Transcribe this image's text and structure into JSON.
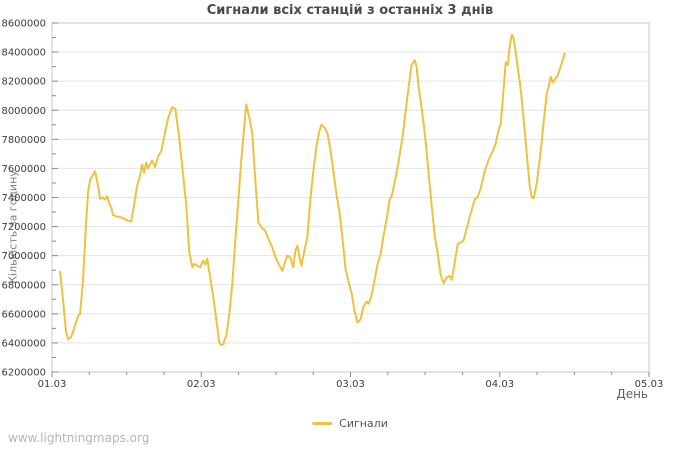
{
  "page": {
    "watermark": "www.lightningmaps.org"
  },
  "colors": {
    "series_yellow": "#EDC240",
    "grid_line": "#e4e4e4",
    "plot_border": "#c9c9c9",
    "tick_mark": "#8a8a8a",
    "tick_label": "#3c3c3c",
    "background": "#ffffff"
  },
  "chart_data": {
    "type": "line",
    "title": "Сигнали всіх станцій з останніх 3 днів",
    "xlabel": "День",
    "ylabel": "Кількість за годину",
    "x_tick_labels": [
      "01.03",
      "02.03",
      "03.03",
      "04.03",
      "05.03"
    ],
    "x_range_days": [
      0,
      4
    ],
    "x_minor_step_days": 0.25,
    "ylim": [
      6200000,
      8600000
    ],
    "y_major_step": 200000,
    "y_minor_step": 100000,
    "grid": "horizontal-only",
    "legend": {
      "position": "bottom-center",
      "entries": [
        {
          "label": "Сигнали",
          "color": "#EDC240"
        }
      ]
    },
    "series": [
      {
        "name": "Сигнали",
        "color": "#EDC240",
        "points_days_value": [
          [
            0.054,
            6890000
          ],
          [
            0.074,
            6700000
          ],
          [
            0.094,
            6480000
          ],
          [
            0.107,
            6425000
          ],
          [
            0.128,
            6440000
          ],
          [
            0.148,
            6500000
          ],
          [
            0.174,
            6585000
          ],
          [
            0.188,
            6600000
          ],
          [
            0.208,
            6830000
          ],
          [
            0.228,
            7220000
          ],
          [
            0.242,
            7440000
          ],
          [
            0.255,
            7520000
          ],
          [
            0.289,
            7580000
          ],
          [
            0.309,
            7480000
          ],
          [
            0.322,
            7390000
          ],
          [
            0.342,
            7400000
          ],
          [
            0.356,
            7385000
          ],
          [
            0.369,
            7410000
          ],
          [
            0.383,
            7360000
          ],
          [
            0.396,
            7335000
          ],
          [
            0.409,
            7280000
          ],
          [
            0.43,
            7270000
          ],
          [
            0.456,
            7265000
          ],
          [
            0.483,
            7255000
          ],
          [
            0.51,
            7240000
          ],
          [
            0.53,
            7235000
          ],
          [
            0.55,
            7350000
          ],
          [
            0.57,
            7480000
          ],
          [
            0.591,
            7555000
          ],
          [
            0.604,
            7625000
          ],
          [
            0.617,
            7570000
          ],
          [
            0.631,
            7640000
          ],
          [
            0.644,
            7600000
          ],
          [
            0.671,
            7655000
          ],
          [
            0.691,
            7610000
          ],
          [
            0.711,
            7680000
          ],
          [
            0.732,
            7720000
          ],
          [
            0.758,
            7850000
          ],
          [
            0.779,
            7950000
          ],
          [
            0.805,
            8020000
          ],
          [
            0.826,
            8010000
          ],
          [
            0.852,
            7810000
          ],
          [
            0.879,
            7550000
          ],
          [
            0.899,
            7350000
          ],
          [
            0.919,
            7030000
          ],
          [
            0.94,
            6920000
          ],
          [
            0.953,
            6945000
          ],
          [
            0.973,
            6930000
          ],
          [
            0.993,
            6920000
          ],
          [
            1.013,
            6965000
          ],
          [
            1.027,
            6940000
          ],
          [
            1.04,
            6980000
          ],
          [
            1.06,
            6850000
          ],
          [
            1.081,
            6715000
          ],
          [
            1.101,
            6560000
          ],
          [
            1.121,
            6400000
          ],
          [
            1.134,
            6385000
          ],
          [
            1.148,
            6390000
          ],
          [
            1.154,
            6415000
          ],
          [
            1.168,
            6450000
          ],
          [
            1.188,
            6600000
          ],
          [
            1.208,
            6810000
          ],
          [
            1.228,
            7100000
          ],
          [
            1.248,
            7380000
          ],
          [
            1.268,
            7650000
          ],
          [
            1.289,
            7900000
          ],
          [
            1.302,
            8040000
          ],
          [
            1.322,
            7950000
          ],
          [
            1.342,
            7840000
          ],
          [
            1.356,
            7610000
          ],
          [
            1.369,
            7425000
          ],
          [
            1.383,
            7230000
          ],
          [
            1.403,
            7195000
          ],
          [
            1.43,
            7170000
          ],
          [
            1.45,
            7115000
          ],
          [
            1.477,
            7055000
          ],
          [
            1.497,
            6990000
          ],
          [
            1.517,
            6945000
          ],
          [
            1.544,
            6895000
          ],
          [
            1.564,
            6965000
          ],
          [
            1.577,
            7000000
          ],
          [
            1.597,
            6985000
          ],
          [
            1.617,
            6920000
          ],
          [
            1.631,
            7035000
          ],
          [
            1.644,
            7070000
          ],
          [
            1.658,
            6990000
          ],
          [
            1.671,
            6930000
          ],
          [
            1.691,
            7035000
          ],
          [
            1.711,
            7130000
          ],
          [
            1.732,
            7400000
          ],
          [
            1.752,
            7590000
          ],
          [
            1.772,
            7755000
          ],
          [
            1.792,
            7860000
          ],
          [
            1.805,
            7900000
          ],
          [
            1.826,
            7880000
          ],
          [
            1.846,
            7840000
          ],
          [
            1.866,
            7725000
          ],
          [
            1.886,
            7575000
          ],
          [
            1.906,
            7420000
          ],
          [
            1.926,
            7300000
          ],
          [
            1.946,
            7125000
          ],
          [
            1.966,
            6915000
          ],
          [
            1.987,
            6820000
          ],
          [
            2.007,
            6745000
          ],
          [
            2.027,
            6620000
          ],
          [
            2.047,
            6540000
          ],
          [
            2.067,
            6560000
          ],
          [
            2.087,
            6650000
          ],
          [
            2.107,
            6685000
          ],
          [
            2.121,
            6670000
          ],
          [
            2.141,
            6725000
          ],
          [
            2.161,
            6830000
          ],
          [
            2.181,
            6940000
          ],
          [
            2.201,
            7010000
          ],
          [
            2.221,
            7135000
          ],
          [
            2.242,
            7250000
          ],
          [
            2.262,
            7385000
          ],
          [
            2.275,
            7405000
          ],
          [
            2.289,
            7470000
          ],
          [
            2.309,
            7570000
          ],
          [
            2.329,
            7690000
          ],
          [
            2.349,
            7820000
          ],
          [
            2.369,
            7990000
          ],
          [
            2.383,
            8110000
          ],
          [
            2.396,
            8210000
          ],
          [
            2.409,
            8310000
          ],
          [
            2.43,
            8345000
          ],
          [
            2.443,
            8300000
          ],
          [
            2.456,
            8160000
          ],
          [
            2.47,
            8070000
          ],
          [
            2.483,
            7965000
          ],
          [
            2.503,
            7790000
          ],
          [
            2.523,
            7565000
          ],
          [
            2.544,
            7340000
          ],
          [
            2.564,
            7140000
          ],
          [
            2.584,
            7015000
          ],
          [
            2.604,
            6870000
          ],
          [
            2.624,
            6810000
          ],
          [
            2.644,
            6850000
          ],
          [
            2.664,
            6860000
          ],
          [
            2.678,
            6835000
          ],
          [
            2.698,
            6950000
          ],
          [
            2.718,
            7080000
          ],
          [
            2.738,
            7090000
          ],
          [
            2.758,
            7105000
          ],
          [
            2.779,
            7190000
          ],
          [
            2.805,
            7290000
          ],
          [
            2.832,
            7385000
          ],
          [
            2.852,
            7405000
          ],
          [
            2.872,
            7460000
          ],
          [
            2.899,
            7580000
          ],
          [
            2.926,
            7660000
          ],
          [
            2.953,
            7720000
          ],
          [
            2.973,
            7770000
          ],
          [
            2.993,
            7870000
          ],
          [
            3.007,
            7910000
          ],
          [
            3.02,
            8070000
          ],
          [
            3.034,
            8250000
          ],
          [
            3.04,
            8330000
          ],
          [
            3.054,
            8310000
          ],
          [
            3.067,
            8440000
          ],
          [
            3.081,
            8520000
          ],
          [
            3.094,
            8490000
          ],
          [
            3.107,
            8400000
          ],
          [
            3.121,
            8290000
          ],
          [
            3.134,
            8200000
          ],
          [
            3.148,
            8070000
          ],
          [
            3.161,
            7930000
          ],
          [
            3.174,
            7780000
          ],
          [
            3.188,
            7620000
          ],
          [
            3.201,
            7480000
          ],
          [
            3.215,
            7400000
          ],
          [
            3.228,
            7395000
          ],
          [
            3.248,
            7500000
          ],
          [
            3.268,
            7660000
          ],
          [
            3.282,
            7790000
          ],
          [
            3.295,
            7930000
          ],
          [
            3.315,
            8115000
          ],
          [
            3.329,
            8170000
          ],
          [
            3.342,
            8230000
          ],
          [
            3.356,
            8190000
          ],
          [
            3.369,
            8210000
          ],
          [
            3.389,
            8240000
          ],
          [
            3.409,
            8305000
          ],
          [
            3.423,
            8350000
          ],
          [
            3.436,
            8390000
          ]
        ]
      }
    ]
  }
}
